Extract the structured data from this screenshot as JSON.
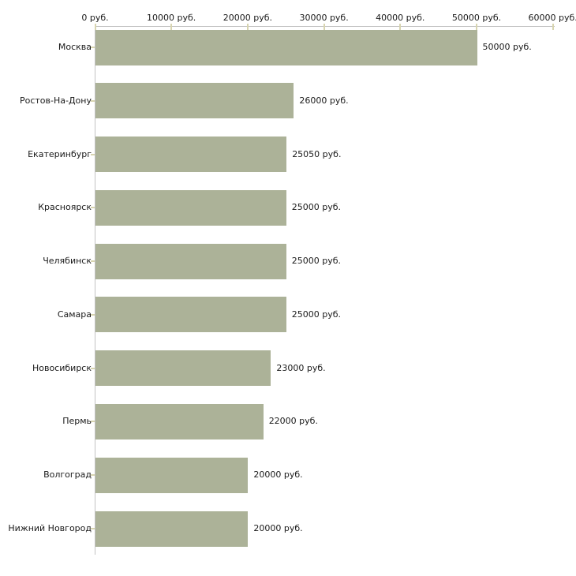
{
  "chart_data": {
    "type": "bar",
    "orientation": "horizontal",
    "title": "",
    "xlabel": "",
    "ylabel": "",
    "grid": false,
    "legend": false,
    "categories": [
      "Москва",
      "Ростов-На-Дону",
      "Екатеринбург",
      "Красноярск",
      "Челябинск",
      "Самара",
      "Новосибирск",
      "Пермь",
      "Волгоград",
      "Нижний Новгород"
    ],
    "values": [
      50000,
      26000,
      25050,
      25000,
      25000,
      25000,
      23000,
      22000,
      20000,
      20000
    ],
    "value_labels": [
      "50000 руб.",
      "26000 руб.",
      "25050 руб.",
      "25000 руб.",
      "25000 руб.",
      "25000 руб.",
      "23000 руб.",
      "22000 руб.",
      "20000 руб.",
      "20000 руб."
    ],
    "x_axis": {
      "position": "top",
      "min": 0,
      "max": 60000,
      "ticks": [
        0,
        10000,
        20000,
        30000,
        40000,
        50000,
        60000
      ],
      "tick_labels": [
        "0 руб.",
        "10000 руб.",
        "20000 руб.",
        "30000 руб.",
        "40000 руб.",
        "50000 руб.",
        "60000 руб."
      ]
    },
    "colors": {
      "bar": "#acb298",
      "axis_line": "#c2c2c2",
      "tick_mark": "#d8d5b0",
      "text": "#1a1a1a",
      "background": "#ffffff"
    }
  }
}
